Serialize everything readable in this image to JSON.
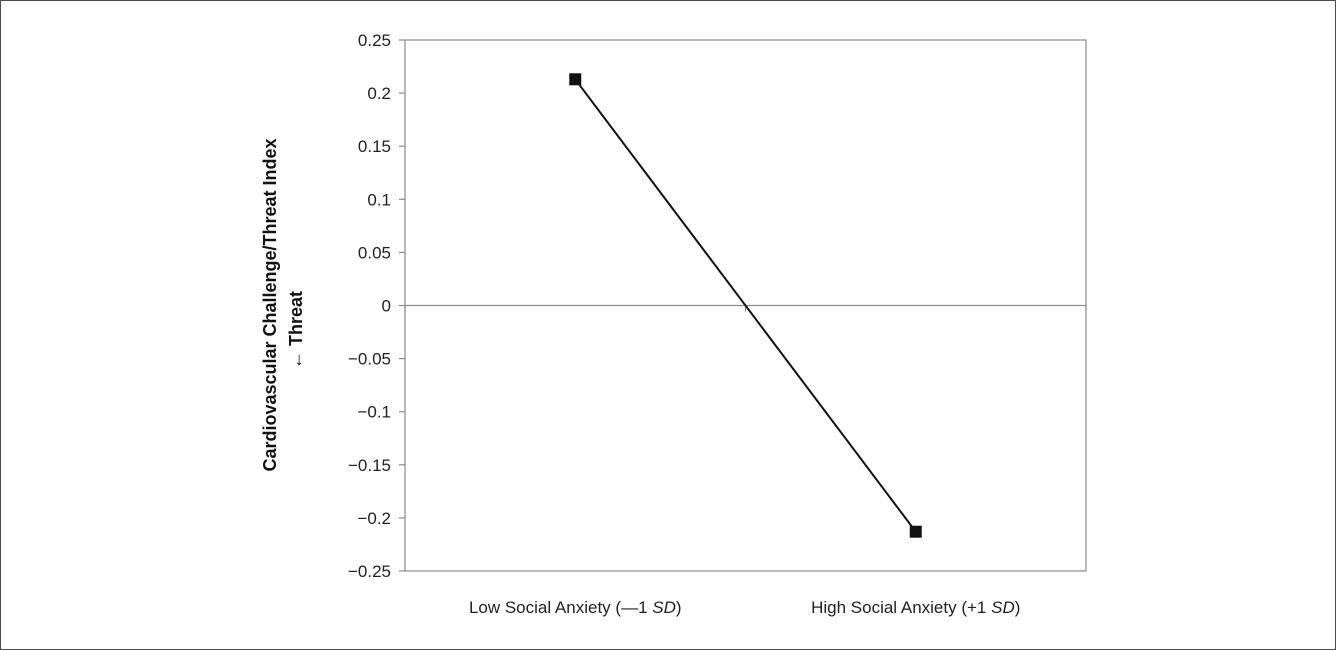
{
  "chart_data": {
    "type": "line",
    "categories": [
      "Low Social Anxiety (—1 SD)",
      "High Social Anxiety (+1 SD)"
    ],
    "category_parts": [
      {
        "prefix": "Low Social Anxiety (—1 ",
        "italic": "SD",
        "suffix": ")"
      },
      {
        "prefix": "High Social Anxiety (+1 ",
        "italic": "SD",
        "suffix": ")"
      }
    ],
    "series": [
      {
        "values": [
          0.213,
          -0.213
        ],
        "color": "#111111",
        "marker": "square"
      }
    ],
    "ylabel": "Cardiovascular Challenge/Threat Index",
    "ylabel_line2": "← Threat",
    "ylim": [
      -0.25,
      0.25
    ],
    "yticks": [
      0.25,
      0.2,
      0.15,
      0.1,
      0.05,
      0,
      -0.05,
      -0.1,
      -0.15,
      -0.2,
      -0.25
    ],
    "ytick_labels": [
      "0.25",
      "0.2",
      "0.15",
      "0.1",
      "0.05",
      "0",
      "−0.05",
      "−0.1",
      "−0.15",
      "−0.2",
      "−0.25"
    ],
    "grid": false
  }
}
